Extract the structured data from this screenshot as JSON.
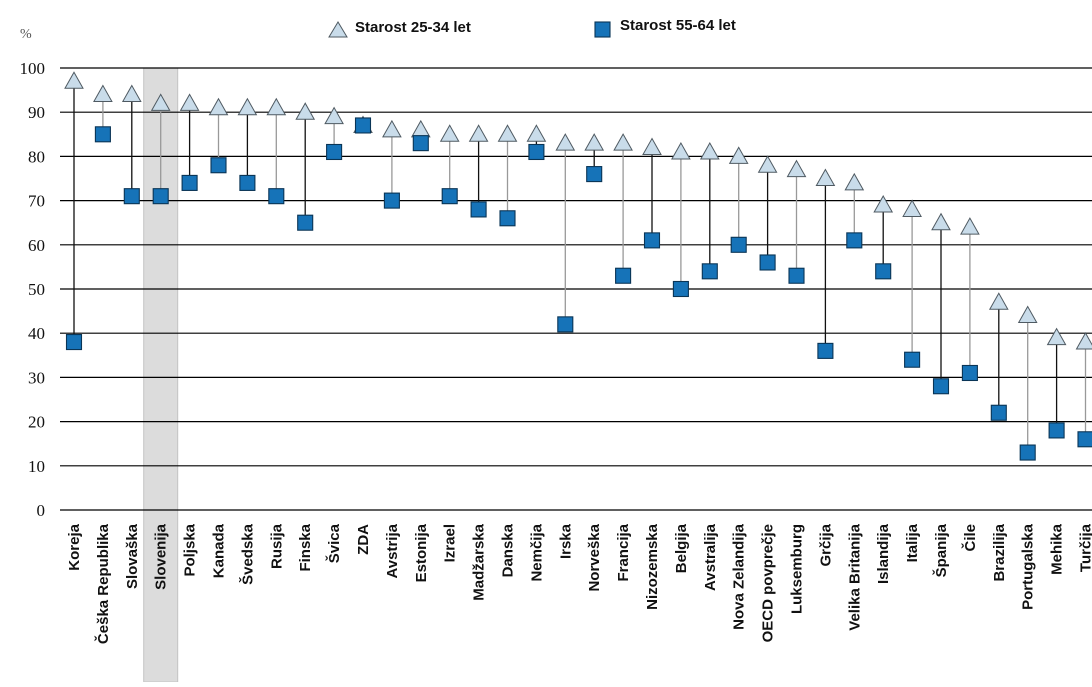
{
  "chart_data": {
    "type": "scatter",
    "ylabel": "%",
    "ylim": [
      0,
      100
    ],
    "yticks": [
      0,
      10,
      20,
      30,
      40,
      50,
      60,
      70,
      80,
      90,
      100
    ],
    "grid": true,
    "legend_position": "top",
    "highlight": "Slovenija",
    "categories": [
      "Koreja",
      "Češka Republika",
      "Slovaška",
      "Slovenija",
      "Poljska",
      "Kanada",
      "Švedska",
      "Rusija",
      "Finska",
      "Švica",
      "ZDA",
      "Avstrija",
      "Estonija",
      "Izrael",
      "Madžarska",
      "Danska",
      "Nemčija",
      "Irska",
      "Norveška",
      "Francija",
      "Nizozemska",
      "Belgija",
      "Avstralija",
      "Nova Zelandija",
      "OECD povprečje",
      "Luksemburg",
      "Grčija",
      "Velika Britanija",
      "Islandija",
      "Italija",
      "Španija",
      "Čile",
      "Brazilija",
      "Portugalska",
      "Mehika",
      "Turčija"
    ],
    "series": [
      {
        "name": "Starost 25-34 let",
        "marker": "triangle",
        "color": "#c9dcea",
        "values": [
          97,
          94,
          94,
          92,
          92,
          91,
          91,
          91,
          90,
          89,
          87,
          86,
          86,
          85,
          85,
          85,
          85,
          83,
          83,
          83,
          82,
          81,
          81,
          80,
          78,
          77,
          75,
          74,
          69,
          68,
          65,
          64,
          47,
          44,
          39,
          38
        ]
      },
      {
        "name": "Starost 55-64 let",
        "marker": "square",
        "color": "#1673b8",
        "values": [
          38,
          85,
          71,
          71,
          74,
          78,
          74,
          71,
          65,
          81,
          87,
          70,
          83,
          71,
          68,
          66,
          81,
          42,
          76,
          53,
          61,
          50,
          54,
          60,
          56,
          53,
          36,
          61,
          54,
          34,
          28,
          31,
          22,
          13,
          18,
          16
        ]
      }
    ],
    "connector_colors": [
      "#111111",
      "#999999"
    ]
  }
}
